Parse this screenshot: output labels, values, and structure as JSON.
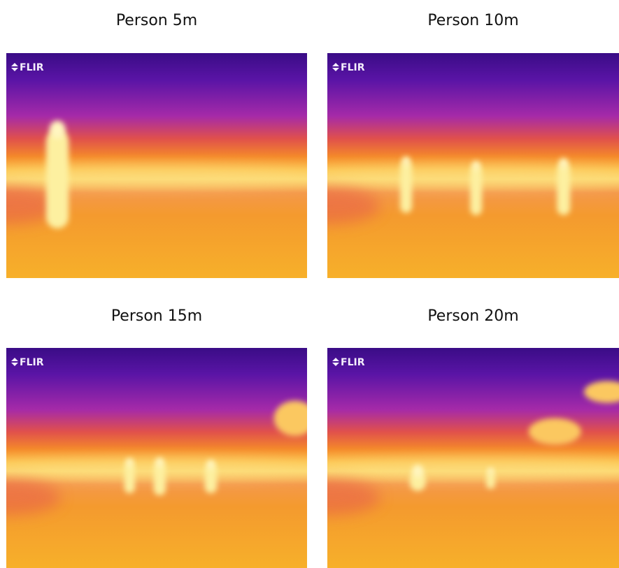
{
  "panels": [
    {
      "caption": "Person 5m",
      "logo": "FLIR"
    },
    {
      "caption": "Person 10m",
      "logo": "FLIR"
    },
    {
      "caption": "Person 15m",
      "logo": "FLIR"
    },
    {
      "caption": "Person 20m",
      "logo": "FLIR"
    }
  ]
}
